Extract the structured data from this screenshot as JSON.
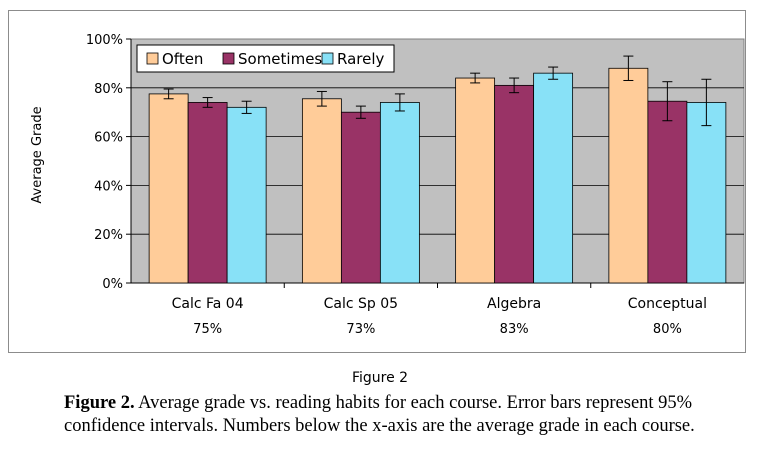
{
  "chart_data": {
    "type": "bar",
    "title": "",
    "xlabel": "",
    "ylabel": "Average Grade",
    "ylim": [
      0,
      100
    ],
    "yticks": [
      "0%",
      "20%",
      "40%",
      "60%",
      "80%",
      "100%"
    ],
    "ytick_values": [
      0,
      20,
      40,
      60,
      80,
      100
    ],
    "grid": true,
    "legend_position": "top-left",
    "categories": [
      "Calc Fa 04",
      "Calc Sp 05",
      "Algebra",
      "Conceptual"
    ],
    "category_averages": [
      "75%",
      "73%",
      "83%",
      "80%"
    ],
    "series": [
      {
        "name": "Often",
        "color": "#ffcc99",
        "values": [
          77.5,
          75.5,
          84,
          88
        ],
        "errors": [
          2,
          3,
          2,
          5
        ]
      },
      {
        "name": "Sometimes",
        "color": "#993366",
        "values": [
          74,
          70,
          81,
          74.5
        ],
        "errors": [
          2,
          2.5,
          3,
          8
        ]
      },
      {
        "name": "Rarely",
        "color": "#88e1f7",
        "values": [
          72,
          74,
          86,
          74
        ],
        "errors": [
          2.5,
          3.5,
          2.5,
          9.5
        ]
      }
    ],
    "plot_background": "#c0c0c0"
  },
  "figure_label": "Figure 2",
  "caption": {
    "bold": "Figure 2.",
    "text": " Average grade vs. reading habits for each course. Error bars represent 95% confidence intervals. Numbers below the x-axis are the average grade in each course."
  }
}
